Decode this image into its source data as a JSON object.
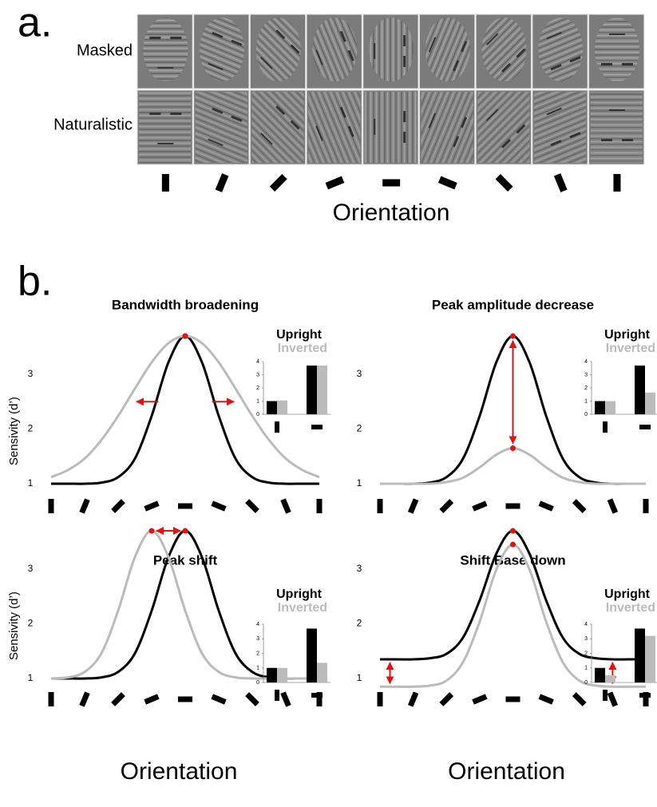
{
  "figure": {
    "panel_a_label": "a.",
    "panel_b_label": "b.",
    "row_labels": [
      "Masked",
      "Naturalistic"
    ],
    "xlabel": "Orientation"
  },
  "chart_data": [
    {
      "type": "line",
      "title": "Bandwidth broadening",
      "ylabel": "Sensivity (d’)",
      "x": [
        0,
        0.5,
        1,
        1.5,
        2,
        2.5,
        3,
        3.5,
        4,
        4.5,
        5,
        5.5,
        6,
        6.5,
        7,
        7.5,
        8
      ],
      "xlim": [
        0,
        8
      ],
      "xticks": [
        0,
        1,
        2,
        3,
        4,
        5,
        6,
        7,
        8
      ],
      "ylim": [
        0.8,
        3.8
      ],
      "yticks": [
        1,
        2,
        3
      ],
      "series": [
        {
          "name": "Upright",
          "color": "#000000",
          "values": [
            1,
            1,
            1,
            1.02,
            1.12,
            1.46,
            2.24,
            3.22,
            3.7,
            3.22,
            2.24,
            1.46,
            1.12,
            1.02,
            1,
            1,
            1
          ]
        },
        {
          "name": "Inverted",
          "color": "#bbbbbb",
          "values": [
            1.12,
            1.25,
            1.46,
            1.8,
            2.24,
            2.74,
            3.22,
            3.57,
            3.7,
            3.57,
            3.22,
            2.74,
            2.24,
            1.8,
            1.46,
            1.25,
            1.12
          ]
        }
      ],
      "inset": {
        "type": "bar",
        "ylim": [
          0,
          4
        ],
        "yticks": [
          0,
          1,
          2,
          3,
          4
        ],
        "series": [
          {
            "color": "#000000",
            "values": [
              1,
              3.7
            ]
          },
          {
            "color": "#bbbbbb",
            "values": [
              1.05,
              3.7
            ]
          }
        ]
      }
    },
    {
      "type": "line",
      "title": "Peak amplitude decrease",
      "x": [
        0,
        0.5,
        1,
        1.5,
        2,
        2.5,
        3,
        3.5,
        4,
        4.5,
        5,
        5.5,
        6,
        6.5,
        7,
        7.5,
        8
      ],
      "xlim": [
        0,
        8
      ],
      "xticks": [
        0,
        1,
        2,
        3,
        4,
        5,
        6,
        7,
        8
      ],
      "ylim": [
        0.8,
        3.8
      ],
      "yticks": [
        1,
        2,
        3
      ],
      "series": [
        {
          "name": "Upright",
          "color": "#000000",
          "values": [
            1,
            1,
            1,
            1.02,
            1.12,
            1.46,
            2.24,
            3.22,
            3.7,
            3.22,
            2.24,
            1.46,
            1.12,
            1.02,
            1,
            1,
            1
          ]
        },
        {
          "name": "Inverted",
          "color": "#bbbbbb",
          "values": [
            1,
            1,
            1,
            1,
            1.03,
            1.11,
            1.3,
            1.53,
            1.65,
            1.53,
            1.3,
            1.11,
            1.03,
            1,
            1,
            1,
            1
          ]
        }
      ],
      "inset": {
        "type": "bar",
        "ylim": [
          0,
          4
        ],
        "yticks": [
          0,
          1,
          2,
          3,
          4
        ],
        "series": [
          {
            "color": "#000000",
            "values": [
              1,
              3.7
            ]
          },
          {
            "color": "#bbbbbb",
            "values": [
              1,
              1.65
            ]
          }
        ]
      }
    },
    {
      "type": "line",
      "title": "Peak shift",
      "ylabel": "Sensivity (d’)",
      "xlabel": "Orientation",
      "x": [
        0,
        0.5,
        1,
        1.5,
        2,
        2.5,
        3,
        3.5,
        4,
        4.5,
        5,
        5.5,
        6,
        6.5,
        7,
        7.5,
        8
      ],
      "xlim": [
        0,
        8
      ],
      "xticks": [
        0,
        1,
        2,
        3,
        4,
        5,
        6,
        7,
        8
      ],
      "ylim": [
        0.8,
        3.8
      ],
      "yticks": [
        1,
        2,
        3
      ],
      "series": [
        {
          "name": "Upright",
          "color": "#000000",
          "values": [
            1,
            1,
            1,
            1.02,
            1.12,
            1.46,
            2.24,
            3.22,
            3.7,
            3.22,
            2.24,
            1.46,
            1.12,
            1.02,
            1,
            1,
            1
          ]
        },
        {
          "name": "Inverted",
          "color": "#bbbbbb",
          "values": [
            1,
            1.02,
            1.12,
            1.46,
            2.24,
            3.22,
            3.7,
            3.22,
            2.24,
            1.46,
            1.12,
            1.02,
            1,
            1,
            1,
            1,
            1
          ]
        }
      ],
      "inset": {
        "type": "bar",
        "ylim": [
          0,
          4
        ],
        "yticks": [
          0,
          1,
          2,
          3,
          4
        ],
        "series": [
          {
            "color": "#000000",
            "values": [
              1,
              3.7
            ]
          },
          {
            "color": "#bbbbbb",
            "values": [
              1,
              1.35
            ]
          }
        ]
      }
    },
    {
      "type": "line",
      "title": "Shift Base down",
      "xlabel": "Orientation",
      "x": [
        0,
        0.5,
        1,
        1.5,
        2,
        2.5,
        3,
        3.5,
        4,
        4.5,
        5,
        5.5,
        6,
        6.5,
        7,
        7.5,
        8
      ],
      "xlim": [
        0,
        8
      ],
      "xticks": [
        0,
        1,
        2,
        3,
        4,
        5,
        6,
        7,
        8
      ],
      "ylim": [
        0.8,
        3.8
      ],
      "yticks": [
        1,
        2,
        3
      ],
      "series": [
        {
          "name": "Upright",
          "color": "#000000",
          "values": [
            1.35,
            1.35,
            1.35,
            1.37,
            1.45,
            1.75,
            2.43,
            3.28,
            3.7,
            3.28,
            2.43,
            1.75,
            1.45,
            1.37,
            1.35,
            1.35,
            1.35
          ]
        },
        {
          "name": "Inverted",
          "color": "#bbbbbb",
          "values": [
            0.85,
            0.85,
            0.85,
            0.87,
            0.96,
            1.3,
            2.04,
            2.99,
            3.45,
            2.99,
            2.04,
            1.3,
            0.96,
            0.87,
            0.85,
            0.85,
            0.85
          ]
        }
      ],
      "inset": {
        "type": "bar",
        "ylim": [
          0,
          4
        ],
        "yticks": [
          0,
          1,
          2,
          3,
          4
        ],
        "series": [
          {
            "color": "#000000",
            "values": [
              1,
              3.7
            ]
          },
          {
            "color": "#bbbbbb",
            "values": [
              0.5,
              3.2
            ]
          }
        ]
      }
    }
  ]
}
